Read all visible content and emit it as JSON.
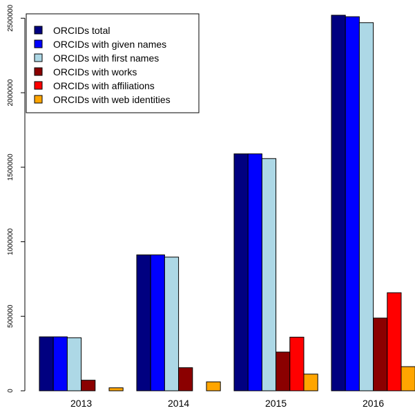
{
  "chart_data": {
    "type": "bar",
    "categories": [
      "2013",
      "2014",
      "2015",
      "2016"
    ],
    "series": [
      {
        "name": "ORCIDs total",
        "color": "#000080",
        "values": [
          362000,
          912000,
          1590000,
          2520000
        ]
      },
      {
        "name": "ORCIDs with given names",
        "color": "#0000ff",
        "values": [
          362000,
          912000,
          1590000,
          2510000
        ]
      },
      {
        "name": "ORCIDs with first names",
        "color": "#add8e6",
        "values": [
          356000,
          897000,
          1558000,
          2470000
        ]
      },
      {
        "name": "ORCIDs with works",
        "color": "#8b0000",
        "values": [
          71000,
          155000,
          260000,
          488000
        ]
      },
      {
        "name": "ORCIDs with affiliations",
        "color": "#ff0000",
        "values": [
          0,
          0,
          360000,
          658000
        ]
      },
      {
        "name": "ORCIDs with web identities",
        "color": "#ffa500",
        "values": [
          20000,
          60000,
          112000,
          162000
        ]
      }
    ],
    "yticks": [
      0,
      500000,
      1000000,
      1500000,
      2000000,
      2500000
    ],
    "ylim": [
      0,
      2520000
    ],
    "title": "",
    "xlabel": "",
    "ylabel": "",
    "legend": "top-left",
    "grid": false
  }
}
